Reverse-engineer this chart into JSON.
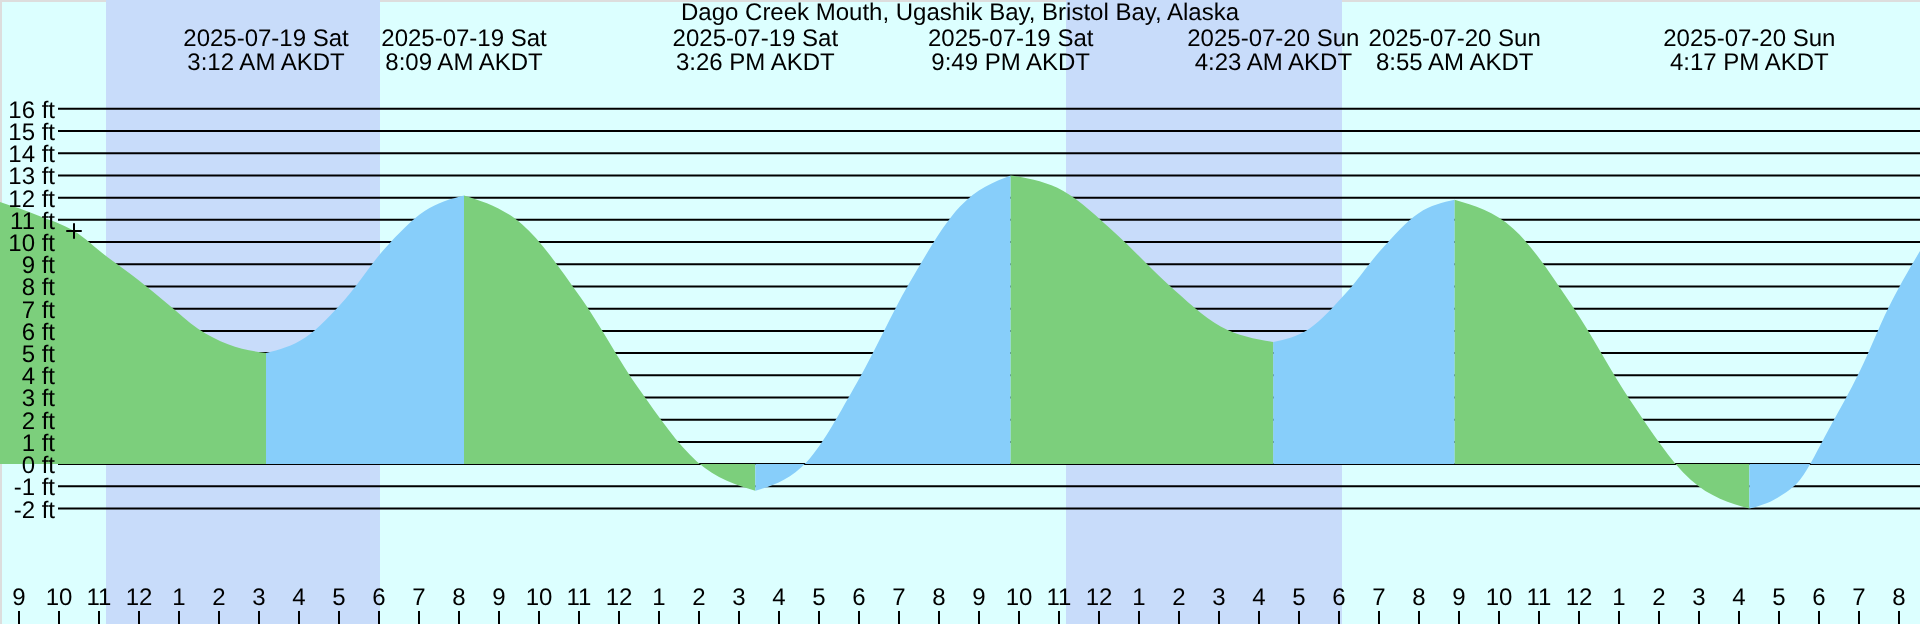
{
  "chart_data": {
    "type": "area",
    "title": "Dago Creek Mouth, Ugashik Bay, Bristol Bay, Alaska",
    "xlim": [
      "2025-07-18T20:33",
      "2025-07-20T20:33"
    ],
    "ylim": [
      -7.2,
      20.9
    ],
    "yticks": [
      {
        "value": -2,
        "label": "-2 ft"
      },
      {
        "value": -1,
        "label": "-1 ft"
      },
      {
        "value": 0,
        "label": "0 ft"
      },
      {
        "value": 1,
        "label": "1 ft"
      },
      {
        "value": 2,
        "label": "2 ft"
      },
      {
        "value": 3,
        "label": "3 ft"
      },
      {
        "value": 4,
        "label": "4 ft"
      },
      {
        "value": 5,
        "label": "5 ft"
      },
      {
        "value": 6,
        "label": "6 ft"
      },
      {
        "value": 7,
        "label": "7 ft"
      },
      {
        "value": 8,
        "label": "8 ft"
      },
      {
        "value": 9,
        "label": "9 ft"
      },
      {
        "value": 10,
        "label": "10 ft"
      },
      {
        "value": 11,
        "label": "11 ft"
      },
      {
        "value": 12,
        "label": "12 ft"
      },
      {
        "value": 13,
        "label": "13 ft"
      },
      {
        "value": 14,
        "label": "14 ft"
      },
      {
        "value": 15,
        "label": "15 ft"
      },
      {
        "value": 16,
        "label": "16 ft"
      }
    ],
    "xticks": [
      {
        "value": "2025-07-18T21:00",
        "label": "9"
      },
      {
        "value": "2025-07-18T22:00",
        "label": "10"
      },
      {
        "value": "2025-07-18T23:00",
        "label": "11"
      },
      {
        "value": "2025-07-19T00:00",
        "label": "12"
      },
      {
        "value": "2025-07-19T01:00",
        "label": "1"
      },
      {
        "value": "2025-07-19T02:00",
        "label": "2"
      },
      {
        "value": "2025-07-19T03:00",
        "label": "3"
      },
      {
        "value": "2025-07-19T04:00",
        "label": "4"
      },
      {
        "value": "2025-07-19T05:00",
        "label": "5"
      },
      {
        "value": "2025-07-19T06:00",
        "label": "6"
      },
      {
        "value": "2025-07-19T07:00",
        "label": "7"
      },
      {
        "value": "2025-07-19T08:00",
        "label": "8"
      },
      {
        "value": "2025-07-19T09:00",
        "label": "9"
      },
      {
        "value": "2025-07-19T10:00",
        "label": "10"
      },
      {
        "value": "2025-07-19T11:00",
        "label": "11"
      },
      {
        "value": "2025-07-19T12:00",
        "label": "12"
      },
      {
        "value": "2025-07-19T13:00",
        "label": "1"
      },
      {
        "value": "2025-07-19T14:00",
        "label": "2"
      },
      {
        "value": "2025-07-19T15:00",
        "label": "3"
      },
      {
        "value": "2025-07-19T16:00",
        "label": "4"
      },
      {
        "value": "2025-07-19T17:00",
        "label": "5"
      },
      {
        "value": "2025-07-19T18:00",
        "label": "6"
      },
      {
        "value": "2025-07-19T19:00",
        "label": "7"
      },
      {
        "value": "2025-07-19T20:00",
        "label": "8"
      },
      {
        "value": "2025-07-19T21:00",
        "label": "9"
      },
      {
        "value": "2025-07-19T22:00",
        "label": "10"
      },
      {
        "value": "2025-07-19T23:00",
        "label": "11"
      },
      {
        "value": "2025-07-20T00:00",
        "label": "12"
      },
      {
        "value": "2025-07-20T01:00",
        "label": "1"
      },
      {
        "value": "2025-07-20T02:00",
        "label": "2"
      },
      {
        "value": "2025-07-20T03:00",
        "label": "3"
      },
      {
        "value": "2025-07-20T04:00",
        "label": "4"
      },
      {
        "value": "2025-07-20T05:00",
        "label": "5"
      },
      {
        "value": "2025-07-20T06:00",
        "label": "6"
      },
      {
        "value": "2025-07-20T07:00",
        "label": "7"
      },
      {
        "value": "2025-07-20T08:00",
        "label": "8"
      },
      {
        "value": "2025-07-20T09:00",
        "label": "9"
      },
      {
        "value": "2025-07-20T10:00",
        "label": "10"
      },
      {
        "value": "2025-07-20T11:00",
        "label": "11"
      },
      {
        "value": "2025-07-20T12:00",
        "label": "12"
      },
      {
        "value": "2025-07-20T13:00",
        "label": "1"
      },
      {
        "value": "2025-07-20T14:00",
        "label": "2"
      },
      {
        "value": "2025-07-20T15:00",
        "label": "3"
      },
      {
        "value": "2025-07-20T16:00",
        "label": "4"
      },
      {
        "value": "2025-07-20T17:00",
        "label": "5"
      },
      {
        "value": "2025-07-20T18:00",
        "label": "6"
      },
      {
        "value": "2025-07-20T19:00",
        "label": "7"
      },
      {
        "value": "2025-07-20T20:00",
        "label": "8"
      }
    ],
    "grid": "y",
    "bands": [
      {
        "axis": "x",
        "from": "2025-07-18T23:12",
        "to": "2025-07-19T06:03",
        "color": "#c8dcfa"
      },
      {
        "axis": "x",
        "from": "2025-07-19T23:12",
        "to": "2025-07-20T06:06",
        "color": "#c8dcfa"
      }
    ],
    "series": [
      {
        "color": "#7ccf7c",
        "x": [
          "2025-07-18T20:33",
          "2025-07-18T21:30",
          "2025-07-18T22:24",
          "2025-07-18T23:15",
          "2025-07-19T00:00",
          "2025-07-19T00:45",
          "2025-07-19T01:30",
          "2025-07-19T02:15",
          "2025-07-19T03:12"
        ],
        "values": [
          11.8,
          11.2,
          10.5,
          9.3,
          8.3,
          7.2,
          6.1,
          5.4,
          5.0
        ]
      },
      {
        "color": "#87cefa",
        "x": [
          "2025-07-19T03:12",
          "2025-07-19T04:11",
          "2025-07-19T05:10",
          "2025-07-19T06:10",
          "2025-07-19T07:10",
          "2025-07-19T08:09"
        ],
        "values": [
          5.0,
          5.7,
          7.4,
          9.7,
          11.4,
          12.1
        ]
      },
      {
        "color": "#7ccf7c",
        "x": [
          "2025-07-19T08:09",
          "2025-07-19T09:36",
          "2025-07-19T11:04",
          "2025-07-19T12:31",
          "2025-07-19T13:59",
          "2025-07-19T15:26"
        ],
        "values": [
          12.1,
          10.8,
          7.5,
          3.4,
          0.1,
          -1.2
        ]
      },
      {
        "color": "#87cefa",
        "x": [
          "2025-07-19T15:26",
          "2025-07-19T16:43",
          "2025-07-19T17:59",
          "2025-07-19T19:16",
          "2025-07-19T20:33",
          "2025-07-19T21:49"
        ],
        "values": [
          -1.2,
          0.1,
          3.7,
          8.1,
          11.6,
          13.0
        ]
      },
      {
        "color": "#7ccf7c",
        "x": [
          "2025-07-19T21:49",
          "2025-07-19T23:08",
          "2025-07-20T00:26",
          "2025-07-20T01:45",
          "2025-07-20T03:04",
          "2025-07-20T04:23"
        ],
        "values": [
          13.0,
          12.3,
          10.4,
          8.1,
          6.2,
          5.5
        ]
      },
      {
        "color": "#87cefa",
        "x": [
          "2025-07-20T04:23",
          "2025-07-20T05:17",
          "2025-07-20T06:12",
          "2025-07-20T07:06",
          "2025-07-20T08:01",
          "2025-07-20T08:55"
        ],
        "values": [
          5.5,
          6.1,
          7.7,
          9.7,
          11.3,
          11.9
        ]
      },
      {
        "color": "#7ccf7c",
        "x": [
          "2025-07-20T08:55",
          "2025-07-20T10:23",
          "2025-07-20T11:52",
          "2025-07-20T13:20",
          "2025-07-20T14:49",
          "2025-07-20T16:17"
        ],
        "values": [
          11.9,
          10.6,
          7.1,
          2.8,
          -0.7,
          -2.0
        ]
      },
      {
        "color": "#87cefa",
        "x": [
          "2025-07-20T16:17",
          "2025-07-20T17:00",
          "2025-07-20T17:33",
          "2025-07-20T18:15",
          "2025-07-20T19:03",
          "2025-07-20T19:45",
          "2025-07-20T20:33"
        ],
        "values": [
          -2.0,
          -1.5,
          -0.7,
          1.5,
          4.2,
          7.0,
          9.6
        ]
      },
      {
        "type": "scatter",
        "marker": "cross",
        "color": "#000000",
        "x": [
          "2025-07-18T22:24"
        ],
        "values": [
          10.5
        ]
      }
    ],
    "annotations": [
      "2025-07-19 Sat\n3:12 AM AKDT",
      "2025-07-19 Sat\n8:09 AM AKDT",
      "2025-07-19 Sat\n3:26 PM AKDT",
      "2025-07-19 Sat\n9:49 PM AKDT",
      "2025-07-20 Sun\n4:23 AM AKDT",
      "2025-07-20 Sun\n8:55 AM AKDT",
      "2025-07-20 Sun\n4:17 PM AKDT"
    ]
  }
}
